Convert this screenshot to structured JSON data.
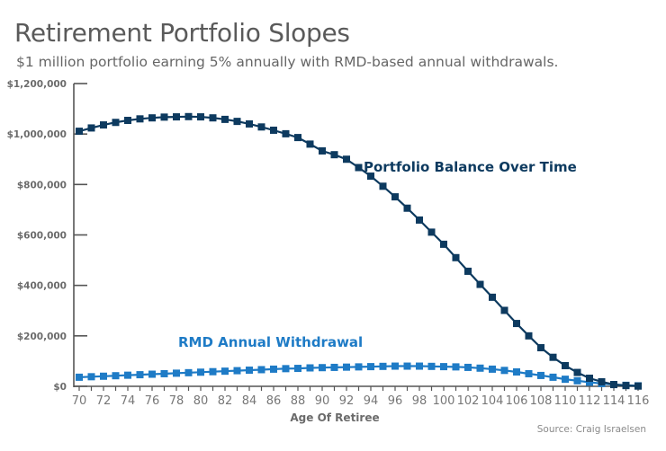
{
  "chart_data": {
    "type": "line",
    "title": "Retirement Portfolio Slopes",
    "subtitle": "$1 million portfolio earning 5% annually with RMD-based annual withdrawals.",
    "xlabel": "Age Of Retiree",
    "ylabel": "",
    "source": "Source: Craig Israelsen",
    "ylim": [
      0,
      1200000
    ],
    "xlim": [
      70,
      116
    ],
    "grid": false,
    "legend": "inline-labels",
    "y_ticks": [
      {
        "value": 0,
        "label": "$0"
      },
      {
        "value": 200000,
        "label": "$200,000"
      },
      {
        "value": 400000,
        "label": "$400,000"
      },
      {
        "value": 600000,
        "label": "$600,000"
      },
      {
        "value": 800000,
        "label": "$800,000"
      },
      {
        "value": 1000000,
        "label": "$1,000,000"
      },
      {
        "value": 1200000,
        "label": "$1,200,000"
      }
    ],
    "x_tick_labels": [
      "70",
      "72",
      "74",
      "76",
      "78",
      "80",
      "82",
      "84",
      "86",
      "88",
      "90",
      "92",
      "94",
      "96",
      "98",
      "100",
      "102",
      "104",
      "106",
      "108",
      "110",
      "112",
      "114",
      "116"
    ],
    "x": [
      70,
      71,
      72,
      73,
      74,
      75,
      76,
      77,
      78,
      79,
      80,
      81,
      82,
      83,
      84,
      85,
      86,
      87,
      88,
      89,
      90,
      91,
      92,
      93,
      94,
      95,
      96,
      97,
      98,
      99,
      100,
      101,
      102,
      103,
      104,
      105,
      106,
      107,
      108,
      109,
      110,
      111,
      112,
      113,
      114,
      115,
      116
    ],
    "series": [
      {
        "name": "Portfolio Balance Over Time",
        "color": "#0d3a5f",
        "values": [
          1011000,
          1024000,
          1036000,
          1046000,
          1054000,
          1060000,
          1064000,
          1067000,
          1068000,
          1069000,
          1068000,
          1064000,
          1058000,
          1050000,
          1040000,
          1028000,
          1015000,
          1001000,
          986000,
          960000,
          933000,
          918000,
          900000,
          867000,
          833000,
          793000,
          751000,
          706000,
          659000,
          611000,
          563000,
          510000,
          456000,
          404000,
          353000,
          301000,
          249000,
          200000,
          153000,
          115000,
          82000,
          55000,
          32000,
          18000,
          7000,
          3000,
          1000
        ]
      },
      {
        "name": "RMD Annual Withdrawal",
        "color": "#1e7bc6",
        "values": [
          36000,
          38000,
          40000,
          42000,
          44000,
          46000,
          48000,
          50000,
          52000,
          54000,
          56000,
          58000,
          60000,
          62000,
          64000,
          66000,
          68000,
          70000,
          71000,
          73000,
          74000,
          75000,
          76000,
          77000,
          78000,
          79000,
          80000,
          80000,
          80000,
          79000,
          78000,
          77000,
          75000,
          72000,
          68000,
          63000,
          57000,
          50000,
          43000,
          36000,
          28000,
          22000,
          16000,
          11000,
          7000,
          4000,
          2000
        ]
      }
    ],
    "annotations": [
      {
        "text": "Portfolio Balance Over Time",
        "series": 0
      },
      {
        "text": "RMD Annual Withdrawal",
        "series": 1
      }
    ]
  }
}
